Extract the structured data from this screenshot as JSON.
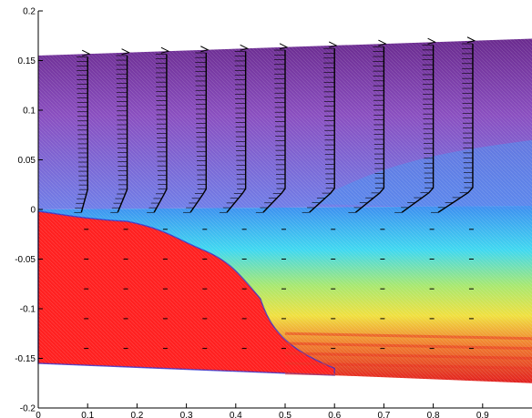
{
  "chart_data": {
    "type": "heatmap",
    "title": "",
    "xlabel": "",
    "ylabel": "",
    "xlim": [
      0,
      1
    ],
    "ylim": [
      -0.2,
      0.2
    ],
    "grid": false,
    "legend": "none",
    "x_ticks": [
      "0",
      "0.1",
      "0.2",
      "0.3",
      "0.4",
      "0.5",
      "0.6",
      "0.7",
      "0.8",
      "0.9"
    ],
    "y_ticks": [
      "-0.2",
      "-0.15",
      "-0.1",
      "-0.05",
      "0",
      "0.05",
      "0.1",
      "0.15",
      "0.2"
    ],
    "x_tick_values": [
      0,
      0.1,
      0.2,
      0.3,
      0.4,
      0.5,
      0.6,
      0.7,
      0.8,
      0.9
    ],
    "y_tick_values": [
      -0.2,
      -0.15,
      -0.1,
      -0.05,
      0,
      0.05,
      0.1,
      0.15,
      0.2
    ],
    "domain": {
      "x_start": 0.0,
      "x_end": 1.0,
      "top_left_y": 0.155,
      "top_right_y": 0.172,
      "bottom_left_y": -0.155,
      "bottom_right_y": -0.175
    },
    "profile_stations_x": [
      0.1,
      0.18,
      0.26,
      0.34,
      0.42,
      0.5,
      0.6,
      0.7,
      0.8,
      0.88
    ],
    "colors": {
      "red_region": "#ff2020",
      "upper_field": "#8a4fc0",
      "cyan": "#40d8f0",
      "yellow": "#f0e040",
      "blue": "#3060e0",
      "velocity_arrows": "#000000",
      "boundary_line": "#3030d0"
    }
  }
}
